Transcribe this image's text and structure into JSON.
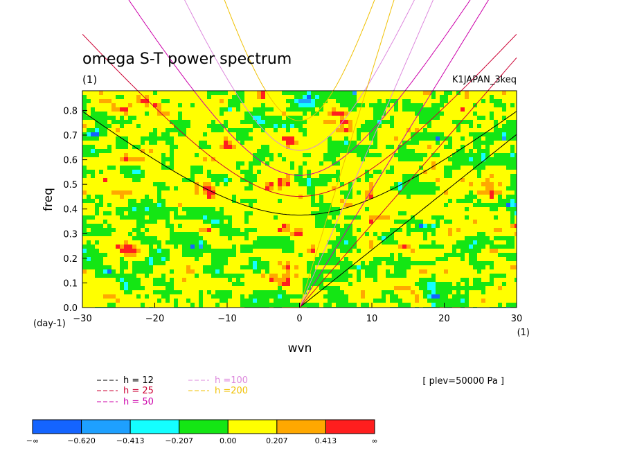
{
  "chart_data": {
    "type": "heatmap",
    "title": "omega S-T power spectrum",
    "subtitle": "(1)",
    "dataset_label": "K1JAPAN_3keq",
    "xlabel": "wvn",
    "ylabel": "freq",
    "x_unit": "(1)",
    "y_unit": "(day-1)",
    "xlim": [
      -30,
      30
    ],
    "ylim": [
      0,
      0.88
    ],
    "x_ticks": [
      "−30",
      "−20",
      "−10",
      "0",
      "10",
      "20",
      "30"
    ],
    "x_tick_values": [
      -30,
      -20,
      -10,
      0,
      10,
      20,
      30
    ],
    "y_ticks": [
      "0.0",
      "0.1",
      "0.2",
      "0.3",
      "0.4",
      "0.5",
      "0.6",
      "0.7",
      "0.8"
    ],
    "y_tick_values": [
      0,
      0.1,
      0.2,
      0.3,
      0.4,
      0.5,
      0.6,
      0.7,
      0.8
    ],
    "level_note": "[ plev=50000 Pa ]",
    "colorbar": {
      "labels": [
        "−∞",
        "−0.620",
        "−0.413",
        "−0.207",
        "0.00",
        "0.207",
        "0.413",
        "∞"
      ],
      "colors": [
        "#1464ff",
        "#1ea0ff",
        "#14ffff",
        "#14e614",
        "#ffff00",
        "#ffa800",
        "#ff1e1e"
      ]
    },
    "curves": [
      {
        "name": "h = 12",
        "h": 12,
        "color": "#000000"
      },
      {
        "name": "h = 25",
        "h": 25,
        "color": "#cc0033"
      },
      {
        "name": "h = 50",
        "h": 50,
        "color": "#cc00aa"
      },
      {
        "name": "h =100",
        "h": 100,
        "color": "#dd88dd"
      },
      {
        "name": "h =200",
        "h": 200,
        "color": "#f0c000"
      }
    ]
  }
}
